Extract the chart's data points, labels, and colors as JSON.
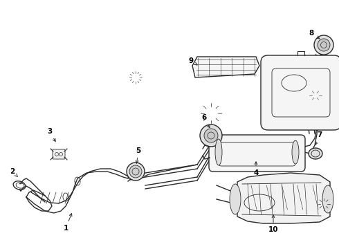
{
  "background_color": "#ffffff",
  "line_color": "#2a2a2a",
  "label_color": "#000000",
  "label_fontsize": 7.5,
  "fig_width": 4.9,
  "fig_height": 3.6,
  "dpi": 100
}
